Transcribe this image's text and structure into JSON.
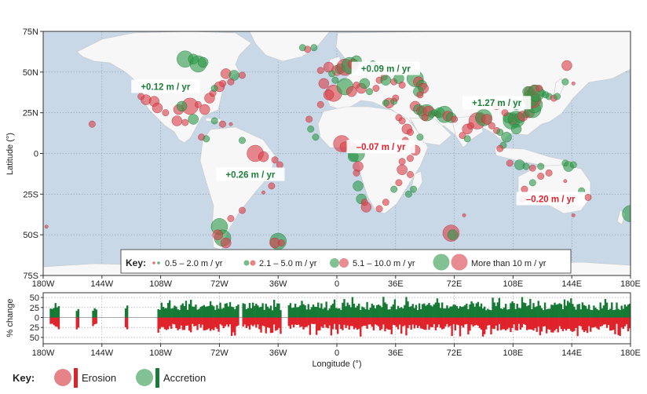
{
  "map": {
    "y_axis_label": "Latitude (°)",
    "lat_ticks": [
      {
        "value": 75,
        "label": "75N"
      },
      {
        "value": 50,
        "label": "50N"
      },
      {
        "value": 25,
        "label": "25N"
      },
      {
        "value": 0,
        "label": "0"
      },
      {
        "value": -25,
        "label": "25S"
      },
      {
        "value": -50,
        "label": "50S"
      },
      {
        "value": -75,
        "label": "75S"
      }
    ],
    "lon_ticks": [
      {
        "value": -180,
        "label": "180W"
      },
      {
        "value": -144,
        "label": "144W"
      },
      {
        "value": -108,
        "label": "108W"
      },
      {
        "value": -72,
        "label": "72W"
      },
      {
        "value": -36,
        "label": "36W"
      },
      {
        "value": 0,
        "label": "0"
      },
      {
        "value": 36,
        "label": "36E"
      },
      {
        "value": 72,
        "label": "72E"
      },
      {
        "value": 108,
        "label": "108E"
      },
      {
        "value": 144,
        "label": "144E"
      },
      {
        "value": 180,
        "label": "180E"
      }
    ],
    "rate_labels": [
      {
        "text": "+0.12 m / yr",
        "lon": -105,
        "lat": 41,
        "kind": "accretion"
      },
      {
        "text": "+0.09 m / yr",
        "lon": 30,
        "lat": 52,
        "kind": "accretion"
      },
      {
        "text": "+1.27 m / yr",
        "lon": 98,
        "lat": 31,
        "kind": "accretion"
      },
      {
        "text": "–0.07 m / yr",
        "lon": 27,
        "lat": 4,
        "kind": "erosion"
      },
      {
        "text": "+0.26 m / yr",
        "lon": -53,
        "lat": -13,
        "kind": "accretion"
      },
      {
        "text": "–0.20 m / yr",
        "lon": 131,
        "lat": -28,
        "kind": "erosion"
      }
    ],
    "legend": {
      "key_label": "Key:",
      "entries": [
        "0.5 – 2.0 m / yr",
        "2.1 – 5.0 m / yr",
        "5.1 – 10.0 m / yr",
        "More than 10 m / yr"
      ]
    },
    "colors": {
      "ocean": "#c8d8e6",
      "land": "#f7f7f7",
      "erosion": "#d9404a",
      "accretion": "#2e9a4a"
    },
    "points": [
      [
        -150,
        18,
        "r",
        2
      ],
      [
        -178,
        -45,
        "r",
        1
      ],
      [
        -112,
        32,
        "r",
        3
      ],
      [
        -117,
        33,
        "r",
        3
      ],
      [
        -120,
        35,
        "r",
        2
      ],
      [
        -110,
        28,
        "r",
        3
      ],
      [
        -105,
        25,
        "r",
        2
      ],
      [
        -98,
        20,
        "r",
        3
      ],
      [
        -97,
        27,
        "r",
        3
      ],
      [
        -90,
        29,
        "r",
        4
      ],
      [
        -85,
        30,
        "r",
        2
      ],
      [
        -81,
        27,
        "r",
        3
      ],
      [
        -78,
        34,
        "r",
        3
      ],
      [
        -76,
        37,
        "r",
        2
      ],
      [
        -72,
        41,
        "r",
        3
      ],
      [
        -70,
        43,
        "r",
        2
      ],
      [
        -95,
        29,
        "g",
        3
      ],
      [
        -93,
        19,
        "r",
        2
      ],
      [
        -88,
        21,
        "g",
        3
      ],
      [
        -83,
        10,
        "r",
        2
      ],
      [
        -80,
        9,
        "g",
        2
      ],
      [
        -75,
        20,
        "g",
        2
      ],
      [
        -70,
        18,
        "r",
        2
      ],
      [
        -65,
        18,
        "r",
        1
      ],
      [
        -93,
        58,
        "g",
        4
      ],
      [
        -85,
        55,
        "g",
        4
      ],
      [
        -82,
        56,
        "g",
        3
      ],
      [
        -88,
        58,
        "g",
        3
      ],
      [
        -68,
        49,
        "r",
        3
      ],
      [
        -63,
        48,
        "g",
        3
      ],
      [
        -65,
        44,
        "r",
        2
      ],
      [
        -58,
        48,
        "r",
        2
      ],
      [
        -75,
        40,
        "g",
        2
      ],
      [
        -58,
        8,
        "g",
        2
      ],
      [
        -50,
        0,
        "r",
        4
      ],
      [
        -45,
        -2,
        "r",
        3
      ],
      [
        -38,
        -4,
        "r",
        2
      ],
      [
        -35,
        -7,
        "r",
        2
      ],
      [
        -40,
        -20,
        "r",
        2
      ],
      [
        -45,
        -24,
        "r",
        1
      ],
      [
        -58,
        -35,
        "r",
        2
      ],
      [
        -72,
        -45,
        "g",
        4
      ],
      [
        -70,
        -52,
        "g",
        4
      ],
      [
        -73,
        -50,
        "r",
        3
      ],
      [
        -68,
        -55,
        "r",
        3
      ],
      [
        -65,
        -40,
        "r",
        2
      ],
      [
        -36,
        -54,
        "g",
        4
      ],
      [
        -38,
        -55,
        "r",
        3
      ],
      [
        -34,
        -55,
        "r",
        2
      ],
      [
        -18,
        64,
        "r",
        2
      ],
      [
        -21,
        65,
        "g",
        2
      ],
      [
        -14,
        65,
        "g",
        2
      ],
      [
        -5,
        53,
        "r",
        3
      ],
      [
        0,
        51,
        "r",
        3
      ],
      [
        2,
        52,
        "g",
        3
      ],
      [
        5,
        53,
        "r",
        4
      ],
      [
        8,
        54,
        "g",
        4
      ],
      [
        10,
        55,
        "r",
        3
      ],
      [
        12,
        57,
        "g",
        3
      ],
      [
        -3,
        49,
        "g",
        2
      ],
      [
        -8,
        43,
        "r",
        3
      ],
      [
        -2,
        37,
        "r",
        4
      ],
      [
        5,
        41,
        "g",
        4
      ],
      [
        9,
        38,
        "r",
        3
      ],
      [
        12,
        42,
        "r",
        2
      ],
      [
        15,
        40,
        "r",
        3
      ],
      [
        20,
        38,
        "g",
        2
      ],
      [
        24,
        40,
        "r",
        2
      ],
      [
        26,
        45,
        "r",
        2
      ],
      [
        22,
        55,
        "g",
        2
      ],
      [
        -10,
        51,
        "r",
        2
      ],
      [
        -1,
        45,
        "g",
        2
      ],
      [
        17,
        43,
        "g",
        3
      ],
      [
        29,
        47,
        "r",
        2
      ],
      [
        30,
        45,
        "g",
        3
      ],
      [
        35,
        44,
        "r",
        2
      ],
      [
        38,
        46,
        "g",
        3
      ],
      [
        40,
        42,
        "r",
        2
      ],
      [
        48,
        46,
        "g",
        4
      ],
      [
        50,
        44,
        "r",
        3
      ],
      [
        52,
        42,
        "g",
        3
      ],
      [
        53,
        40,
        "r",
        3
      ],
      [
        50,
        38,
        "g",
        3
      ],
      [
        51,
        36,
        "r",
        2
      ],
      [
        32,
        31,
        "r",
        3
      ],
      [
        35,
        32,
        "g",
        2
      ],
      [
        38,
        22,
        "r",
        2
      ],
      [
        40,
        20,
        "r",
        2
      ],
      [
        43,
        15,
        "r",
        3
      ],
      [
        45,
        13,
        "r",
        2
      ],
      [
        48,
        29,
        "r",
        3
      ],
      [
        50,
        27,
        "g",
        3
      ],
      [
        52,
        26,
        "r",
        3
      ],
      [
        55,
        25,
        "g",
        4
      ],
      [
        56,
        26,
        "r",
        3
      ],
      [
        58,
        24,
        "g",
        2
      ],
      [
        54,
        22,
        "r",
        2
      ],
      [
        60,
        25,
        "g",
        2
      ],
      [
        62,
        24,
        "r",
        2
      ],
      [
        63,
        25,
        "g",
        3
      ],
      [
        66,
        24,
        "g",
        4
      ],
      [
        68,
        23,
        "r",
        3
      ],
      [
        70,
        22,
        "g",
        3
      ],
      [
        72,
        21,
        "r",
        2
      ],
      [
        80,
        15,
        "r",
        3
      ],
      [
        82,
        17,
        "r",
        2
      ],
      [
        77,
        11,
        "r",
        2
      ],
      [
        80,
        9,
        "g",
        2
      ],
      [
        86,
        20,
        "r",
        4
      ],
      [
        88,
        22,
        "r",
        3
      ],
      [
        90,
        22,
        "g",
        4
      ],
      [
        92,
        21,
        "r",
        3
      ],
      [
        95,
        17,
        "r",
        2
      ],
      [
        98,
        14,
        "r",
        2
      ],
      [
        100,
        13,
        "g",
        2
      ],
      [
        104,
        10,
        "g",
        3
      ],
      [
        107,
        20,
        "g",
        4
      ],
      [
        108,
        21,
        "r",
        3
      ],
      [
        110,
        21,
        "g",
        4
      ],
      [
        112,
        22,
        "g",
        3
      ],
      [
        114,
        23,
        "r",
        3
      ],
      [
        116,
        24,
        "g",
        2
      ],
      [
        118,
        25,
        "r",
        3
      ],
      [
        120,
        27,
        "g",
        4
      ],
      [
        121,
        30,
        "g",
        4
      ],
      [
        120,
        33,
        "r",
        4
      ],
      [
        119,
        34,
        "g",
        4
      ],
      [
        118,
        38,
        "r",
        3
      ],
      [
        117,
        38,
        "g",
        3
      ],
      [
        121,
        39,
        "r",
        3
      ],
      [
        122,
        37,
        "g",
        4
      ],
      [
        124,
        40,
        "r",
        2
      ],
      [
        126,
        37,
        "g",
        2
      ],
      [
        128,
        36,
        "g",
        2
      ],
      [
        130,
        35,
        "g",
        2
      ],
      [
        133,
        34,
        "r",
        2
      ],
      [
        135,
        35,
        "g",
        2
      ],
      [
        110,
        30,
        "g",
        3
      ],
      [
        105,
        22,
        "g",
        3
      ],
      [
        103,
        25,
        "r",
        2
      ],
      [
        98,
        30,
        "r",
        3
      ],
      [
        110,
        15,
        "g",
        3
      ],
      [
        102,
        5,
        "g",
        2
      ],
      [
        100,
        3,
        "r",
        2
      ],
      [
        106,
        -6,
        "r",
        2
      ],
      [
        112,
        -7,
        "g",
        3
      ],
      [
        116,
        -8,
        "g",
        2
      ],
      [
        120,
        -9,
        "r",
        2
      ],
      [
        125,
        -8,
        "g",
        2
      ],
      [
        140,
        -6,
        "g",
        2
      ],
      [
        142,
        -8,
        "g",
        3
      ],
      [
        145,
        -7,
        "g",
        2
      ],
      [
        130,
        -12,
        "r",
        2
      ],
      [
        125,
        -14,
        "r",
        2
      ],
      [
        115,
        -22,
        "r",
        2
      ],
      [
        114,
        -28,
        "r",
        2
      ],
      [
        120,
        -18,
        "g",
        2
      ],
      [
        140,
        -17,
        "r",
        1
      ],
      [
        150,
        -23,
        "g",
        2
      ],
      [
        145,
        -38,
        "r",
        1
      ],
      [
        154,
        -27,
        "r",
        2
      ],
      [
        140,
        44,
        "g",
        2
      ],
      [
        145,
        43,
        "r",
        1
      ],
      [
        141,
        54,
        "r",
        3
      ],
      [
        -5,
        36,
        "r",
        3
      ],
      [
        -10,
        30,
        "r",
        2
      ],
      [
        -16,
        15,
        "g",
        2
      ],
      [
        -13,
        10,
        "g",
        2
      ],
      [
        -17,
        21,
        "r",
        2
      ],
      [
        3,
        6,
        "r",
        4
      ],
      [
        5,
        4,
        "r",
        3
      ],
      [
        9,
        4,
        "r",
        3
      ],
      [
        12,
        0,
        "g",
        4
      ],
      [
        10,
        -2,
        "g",
        3
      ],
      [
        13,
        -8,
        "r",
        3
      ],
      [
        12,
        -12,
        "r",
        2
      ],
      [
        13,
        -20,
        "g",
        3
      ],
      [
        15,
        -28,
        "g",
        3
      ],
      [
        18,
        -33,
        "r",
        3
      ],
      [
        17,
        -30,
        "r",
        2
      ],
      [
        26,
        -34,
        "r",
        2
      ],
      [
        30,
        -30,
        "r",
        2
      ],
      [
        35,
        -22,
        "g",
        2
      ],
      [
        38,
        -18,
        "r",
        2
      ],
      [
        40,
        -10,
        "r",
        3
      ],
      [
        40,
        -5,
        "r",
        2
      ],
      [
        45,
        -3,
        "r",
        2
      ],
      [
        42,
        8,
        "r",
        2
      ],
      [
        48,
        2,
        "r",
        3
      ],
      [
        51,
        10,
        "g",
        2
      ],
      [
        45,
        -13,
        "r",
        2
      ],
      [
        47,
        -22,
        "g",
        2
      ],
      [
        44,
        -25,
        "g",
        2
      ],
      [
        30,
        31,
        "g",
        2
      ],
      [
        36,
        34,
        "r",
        2
      ],
      [
        70,
        -49,
        "r",
        4
      ],
      [
        71,
        -50,
        "g",
        3
      ],
      [
        78,
        -38,
        "r",
        1
      ],
      [
        180,
        -37,
        "g",
        4
      ]
    ]
  },
  "bars": {
    "y_axis_label": "% change",
    "y_ticks": [
      "50",
      "25",
      "0",
      "25",
      "50"
    ],
    "x_axis_label": "Longitude (°)",
    "x_ticks": [
      "180W",
      "144W",
      "108W",
      "72W",
      "36W",
      "0",
      "36E",
      "72E",
      "108E",
      "144E",
      "180E"
    ]
  },
  "bottom_key": {
    "label": "Key:",
    "erosion_label": "Erosion",
    "accretion_label": "Accretion"
  }
}
